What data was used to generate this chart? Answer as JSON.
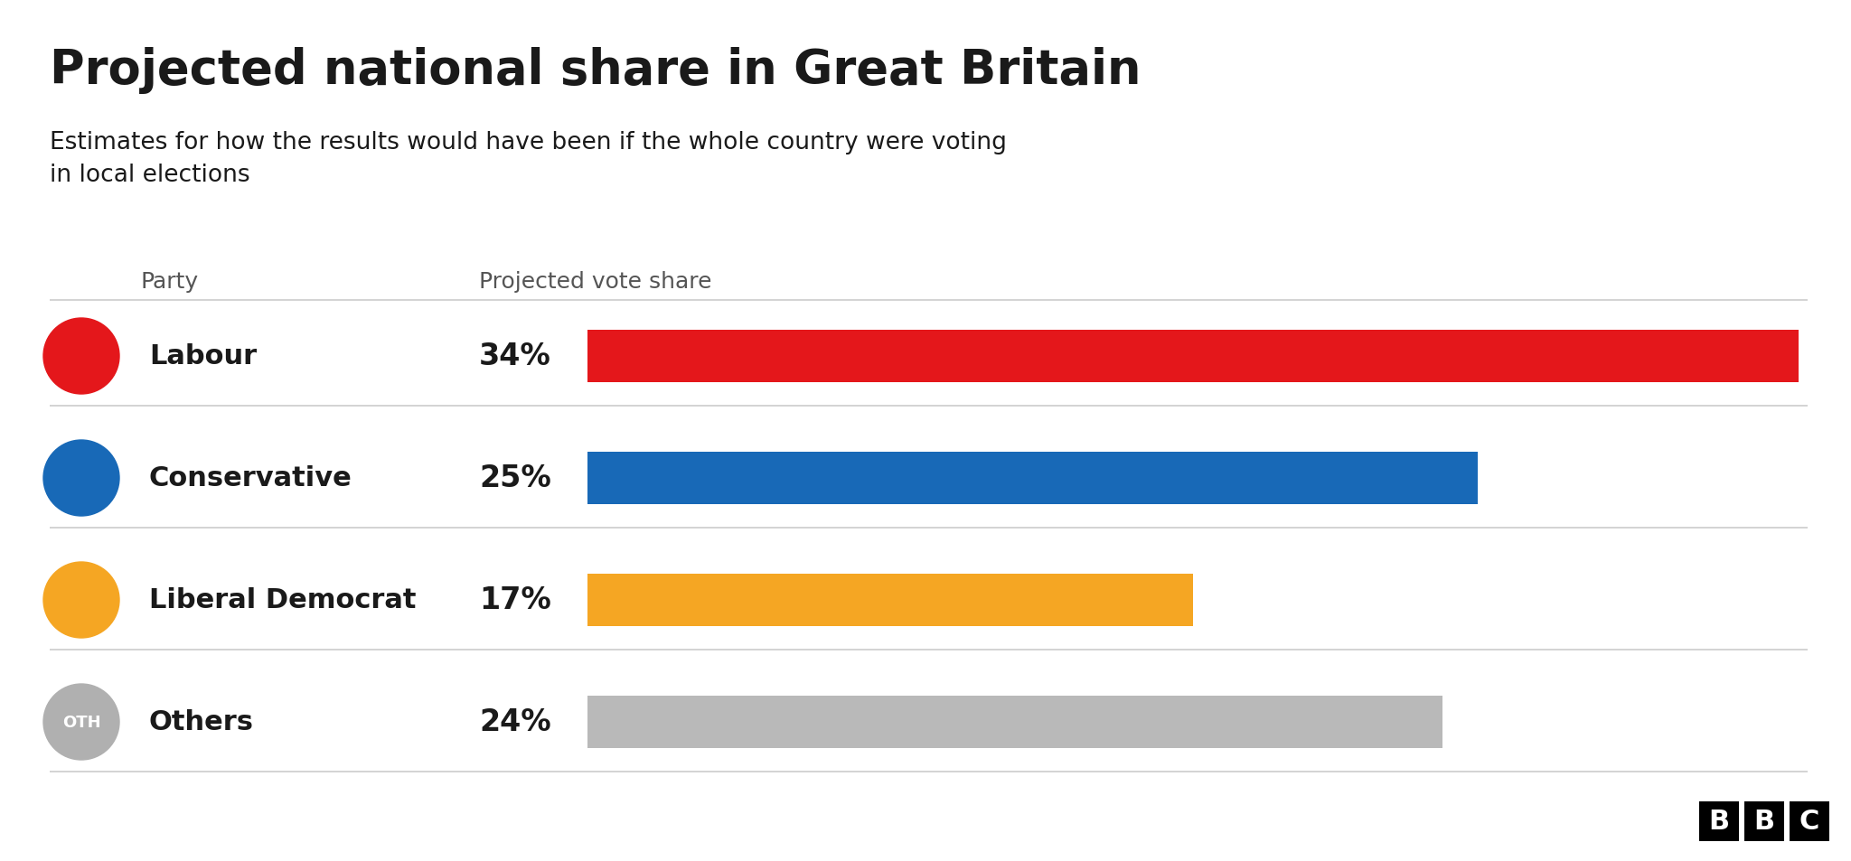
{
  "title": "Projected national share in Great Britain",
  "subtitle": "Estimates for how the results would have been if the whole country were voting\nin local elections",
  "col_header_party": "Party",
  "col_header_vote": "Projected vote share",
  "parties": [
    "Labour",
    "Conservative",
    "Liberal Democrat",
    "Others"
  ],
  "values": [
    34,
    25,
    17,
    24
  ],
  "labels": [
    "34%",
    "25%",
    "17%",
    "24%"
  ],
  "bar_colors": [
    "#e4171b",
    "#1869b7",
    "#f5a623",
    "#b9b9b9"
  ],
  "icon_bg_colors": [
    "#e4171b",
    "#1869b7",
    "#f5a623",
    "#b0b0b0"
  ],
  "icon_labels": [
    "",
    "",
    "",
    "OTH"
  ],
  "background_color": "#ffffff",
  "title_fontsize": 38,
  "subtitle_fontsize": 19,
  "party_fontsize": 22,
  "value_fontsize": 22,
  "header_fontsize": 18,
  "bar_max": 34,
  "divider_color": "#cccccc",
  "text_color": "#1a1a1a",
  "header_color": "#555555",
  "bbc_bg": "#000000",
  "bbc_text": "#ffffff"
}
